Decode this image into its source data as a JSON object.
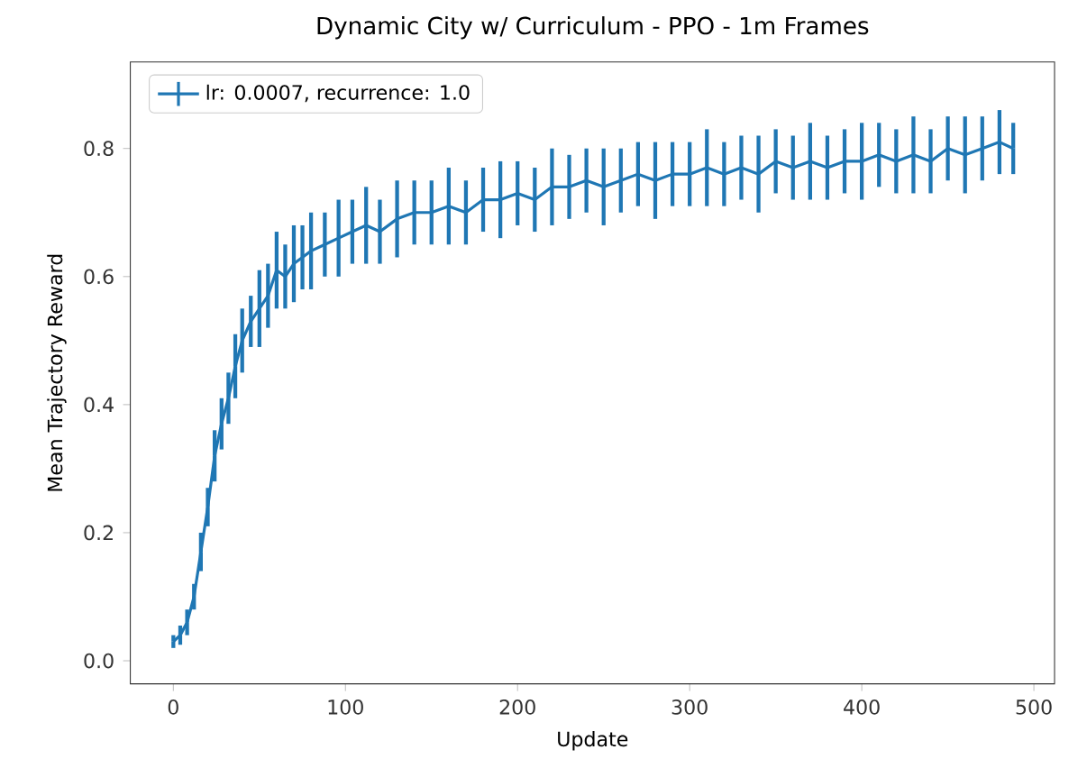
{
  "chart_data": {
    "type": "line",
    "title": "Dynamic City w/ Curriculum - PPO - 1m Frames",
    "xlabel": "Update",
    "ylabel": "Mean Trajectory Reward",
    "xlim": [
      -25,
      512
    ],
    "ylim": [
      -0.036,
      0.935
    ],
    "xticks": [
      0,
      100,
      200,
      300,
      400,
      500
    ],
    "yticks": [
      {
        "value": 0,
        "label": "0.0"
      },
      {
        "value": 0.2,
        "label": "0.2"
      },
      {
        "value": 0.4,
        "label": "0.4"
      },
      {
        "value": 0.6,
        "label": "0.6"
      },
      {
        "value": 0.8,
        "label": "0.8"
      }
    ],
    "legend": "top left",
    "grid": false,
    "series": [
      {
        "name": "lr: 0.0007, recurrence: 1.0",
        "color": "#1f77b4",
        "line_style": "solid",
        "x": [
          0,
          4,
          8,
          12,
          16,
          20,
          24,
          28,
          32,
          36,
          40,
          45,
          50,
          55,
          60,
          65,
          70,
          75,
          80,
          88,
          96,
          104,
          112,
          120,
          130,
          140,
          150,
          160,
          170,
          180,
          190,
          200,
          210,
          220,
          230,
          240,
          250,
          260,
          270,
          280,
          290,
          300,
          310,
          320,
          330,
          340,
          350,
          360,
          370,
          380,
          390,
          400,
          410,
          420,
          430,
          440,
          450,
          460,
          470,
          480,
          488
        ],
        "values": [
          0.03,
          0.04,
          0.06,
          0.1,
          0.17,
          0.24,
          0.32,
          0.37,
          0.41,
          0.46,
          0.5,
          0.53,
          0.55,
          0.57,
          0.61,
          0.6,
          0.62,
          0.63,
          0.64,
          0.65,
          0.66,
          0.67,
          0.68,
          0.67,
          0.69,
          0.7,
          0.7,
          0.71,
          0.7,
          0.72,
          0.72,
          0.73,
          0.72,
          0.74,
          0.74,
          0.75,
          0.74,
          0.75,
          0.76,
          0.75,
          0.76,
          0.76,
          0.77,
          0.76,
          0.77,
          0.76,
          0.78,
          0.77,
          0.78,
          0.77,
          0.78,
          0.78,
          0.79,
          0.78,
          0.79,
          0.78,
          0.8,
          0.79,
          0.8,
          0.81,
          0.8
        ],
        "errors": [
          0.01,
          0.015,
          0.02,
          0.02,
          0.03,
          0.03,
          0.04,
          0.04,
          0.04,
          0.05,
          0.05,
          0.04,
          0.06,
          0.05,
          0.06,
          0.05,
          0.06,
          0.05,
          0.06,
          0.05,
          0.06,
          0.05,
          0.06,
          0.05,
          0.06,
          0.05,
          0.05,
          0.06,
          0.05,
          0.05,
          0.06,
          0.05,
          0.05,
          0.06,
          0.05,
          0.05,
          0.06,
          0.05,
          0.05,
          0.06,
          0.05,
          0.05,
          0.06,
          0.05,
          0.05,
          0.06,
          0.05,
          0.05,
          0.06,
          0.05,
          0.05,
          0.06,
          0.05,
          0.05,
          0.06,
          0.05,
          0.05,
          0.06,
          0.05,
          0.05,
          0.04
        ]
      }
    ]
  }
}
